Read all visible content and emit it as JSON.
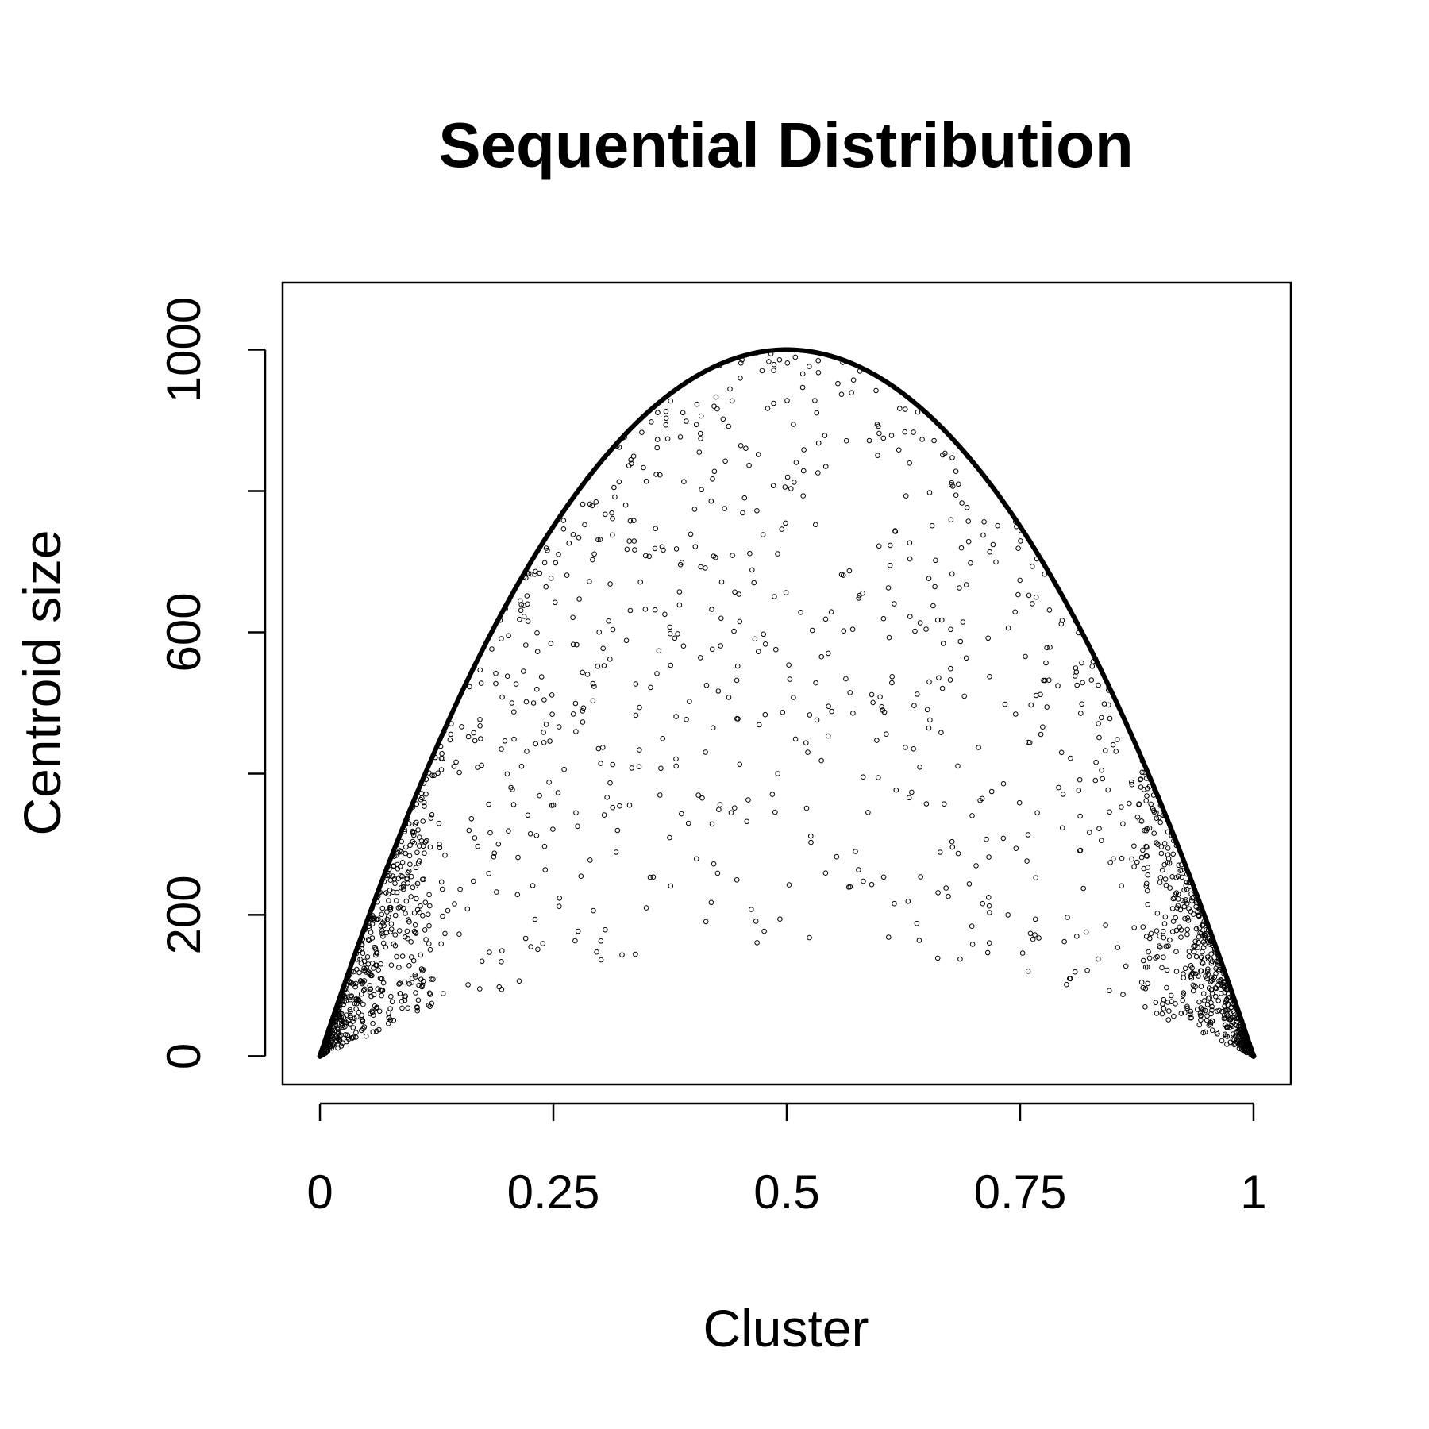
{
  "chart_data": {
    "type": "scatter",
    "title": "Sequential Distribution",
    "xlabel": "Cluster",
    "ylabel": "Centroid size",
    "xlim": [
      -0.04,
      1.04
    ],
    "ylim": [
      -40,
      1095
    ],
    "x_ticks": [
      {
        "value": 0,
        "label": "0"
      },
      {
        "value": 0.25,
        "label": "0.25"
      },
      {
        "value": 0.5,
        "label": "0.5"
      },
      {
        "value": 0.75,
        "label": "0.75"
      },
      {
        "value": 1,
        "label": "1"
      }
    ],
    "y_ticks": [
      {
        "value": 0,
        "label": "0"
      },
      {
        "value": 200,
        "label": "200"
      },
      {
        "value": 400,
        "label": ""
      },
      {
        "value": 600,
        "label": "600"
      },
      {
        "value": 800,
        "label": ""
      },
      {
        "value": 1000,
        "label": "1000"
      }
    ],
    "envelope": {
      "formula": "y = 4000 * x * (1 - x)",
      "peak": [
        0.5,
        1000
      ]
    },
    "grid": false,
    "legend": "none",
    "point_color": "#000000",
    "point_count": 2000
  }
}
